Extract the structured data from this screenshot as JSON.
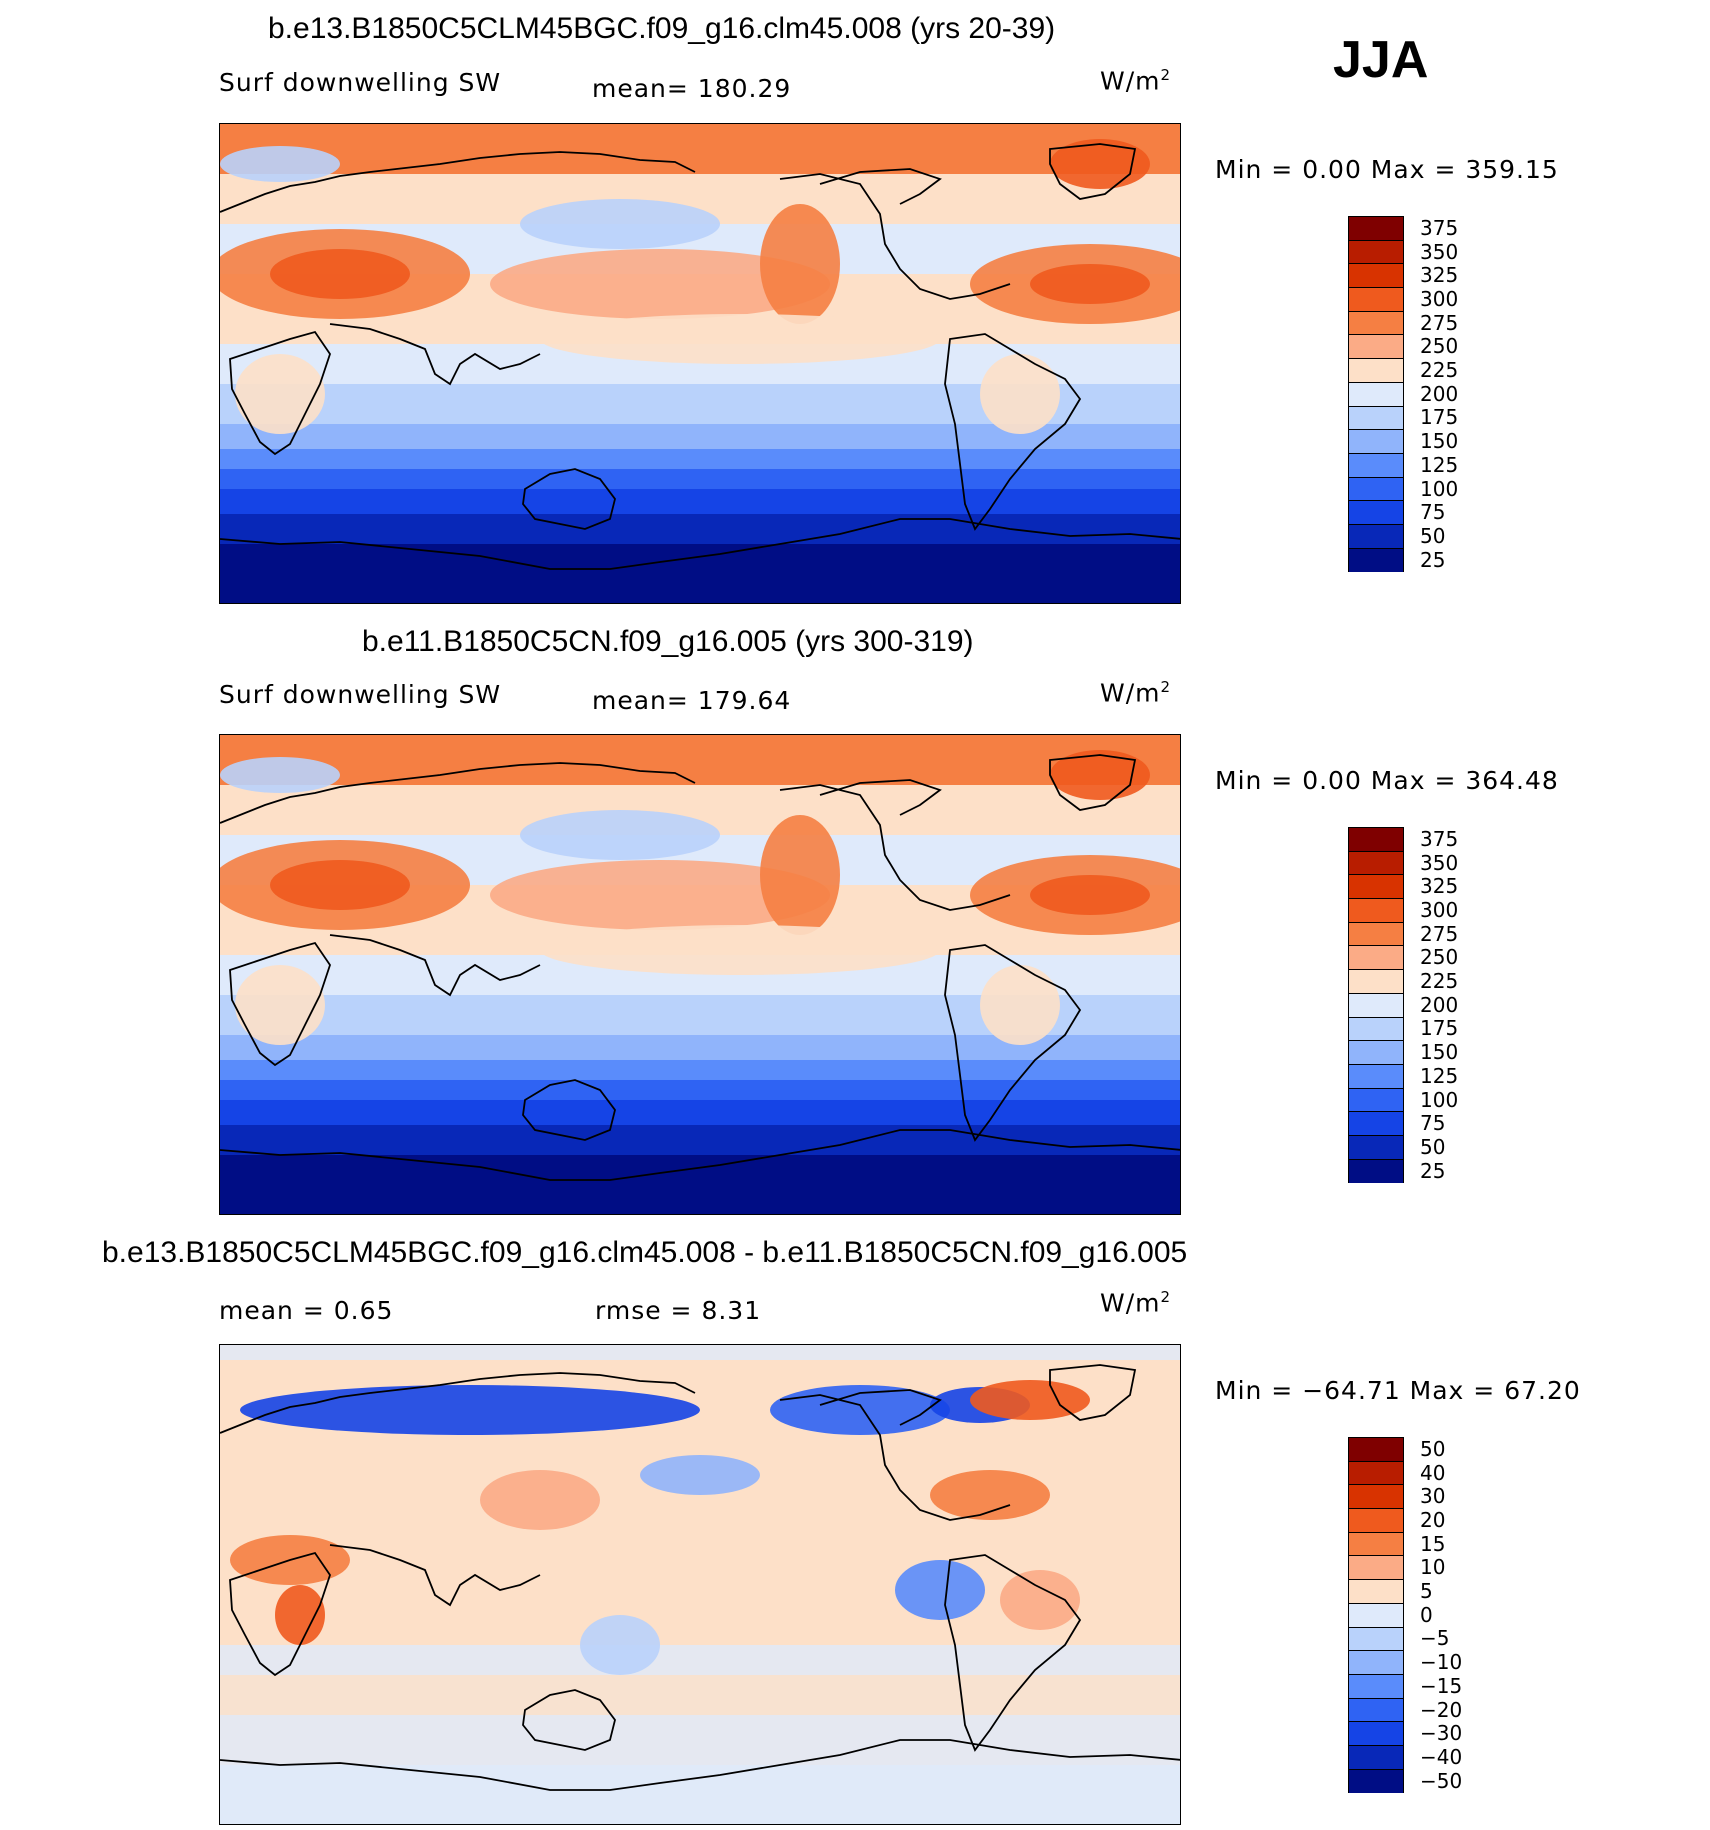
{
  "season": "JJA",
  "panels": [
    {
      "title": "b.e13.B1850C5CLM45BGC.f09_g16.clm45.008 (yrs 20-39)",
      "variable": "Surf downwelling SW",
      "stat": "mean=  180.29",
      "units_base": "W/m",
      "units_exp": "2",
      "minmax": "Min  =     0.00 Max  =  359.15",
      "kind": "abs",
      "colorbar": {
        "colors": [
          "#7f0000",
          "#b81d00",
          "#d83300",
          "#ef5a1e",
          "#f57f43",
          "#fbab86",
          "#fde0c8",
          "#dfeafb",
          "#b9d2fb",
          "#90b4fb",
          "#5a8cfb",
          "#2f63f3",
          "#1544e6",
          "#0828b8",
          "#000d85"
        ],
        "labels": [
          "375",
          "350",
          "325",
          "300",
          "275",
          "250",
          "225",
          "200",
          "175",
          "150",
          "125",
          "100",
          "75",
          "50",
          "25"
        ]
      }
    },
    {
      "title": "b.e11.B1850C5CN.f09_g16.005 (yrs 300-319)",
      "variable": "Surf downwelling SW",
      "stat": "mean=  179.64",
      "units_base": "W/m",
      "units_exp": "2",
      "minmax": "Min  =     0.00 Max  =  364.48",
      "kind": "abs",
      "colorbar": {
        "colors": [
          "#7f0000",
          "#b81d00",
          "#d83300",
          "#ef5a1e",
          "#f57f43",
          "#fbab86",
          "#fde0c8",
          "#dfeafb",
          "#b9d2fb",
          "#90b4fb",
          "#5a8cfb",
          "#2f63f3",
          "#1544e6",
          "#0828b8",
          "#000d85"
        ],
        "labels": [
          "375",
          "350",
          "325",
          "300",
          "275",
          "250",
          "225",
          "200",
          "175",
          "150",
          "125",
          "100",
          "75",
          "50",
          "25"
        ]
      }
    },
    {
      "title": "b.e13.B1850C5CLM45BGC.f09_g16.clm45.008 - b.e11.B1850C5CN.f09_g16.005",
      "variable": "mean  =     0.65",
      "stat": "rmse  =     8.31",
      "units_base": "W/m",
      "units_exp": "2",
      "minmax": "Min  = −64.71  Max  =   67.20",
      "kind": "diff",
      "colorbar": {
        "colors": [
          "#7f0000",
          "#b81d00",
          "#d83300",
          "#ef5a1e",
          "#f57f43",
          "#fbab86",
          "#fde0c8",
          "#dfeafb",
          "#b9d2fb",
          "#90b4fb",
          "#5a8cfb",
          "#2f63f3",
          "#1544e6",
          "#0828b8",
          "#000d85"
        ],
        "labels": [
          "50",
          "40",
          "30",
          "20",
          "15",
          "10",
          "5",
          "0",
          "−5",
          "−10",
          "−15",
          "−20",
          "−30",
          "−40",
          "−50"
        ]
      }
    }
  ]
}
